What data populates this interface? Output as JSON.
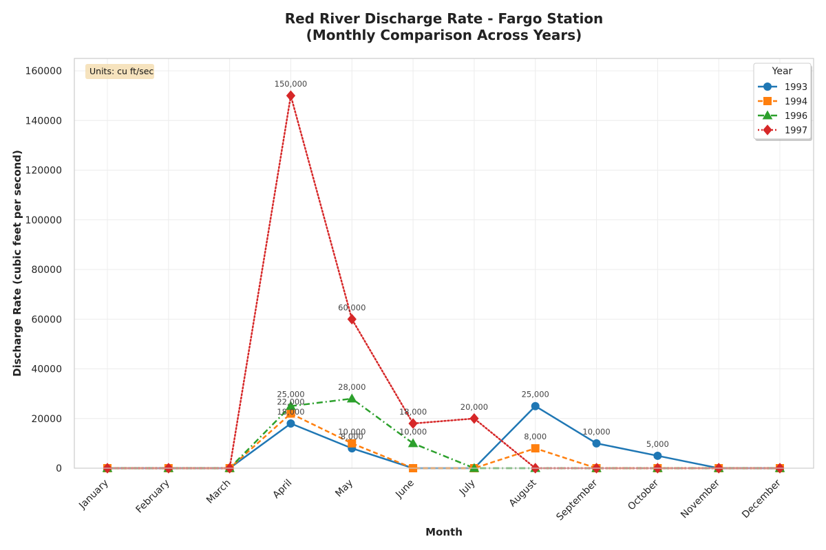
{
  "chart_data": {
    "type": "line",
    "title": "Red River Discharge Rate - Fargo Station",
    "subtitle": "(Monthly Comparison Across Years)",
    "xlabel": "Month",
    "ylabel": "Discharge Rate (cubic feet per second)",
    "categories": [
      "January",
      "February",
      "March",
      "April",
      "May",
      "June",
      "July",
      "August",
      "September",
      "October",
      "November",
      "December"
    ],
    "ylim": [
      0,
      165000
    ],
    "yticks": [
      0,
      20000,
      40000,
      60000,
      80000,
      100000,
      120000,
      140000,
      160000
    ],
    "ytick_labels": [
      "0",
      "20000",
      "40000",
      "60000",
      "80000",
      "100000",
      "120000",
      "140000",
      "160000"
    ],
    "grid": true,
    "legend": {
      "title": "Year",
      "placement": "top-right"
    },
    "annotation": "Units: cu ft/sec",
    "series": [
      {
        "name": "1993",
        "color": "#1f77b4",
        "line_style": "solid",
        "marker": "circle",
        "values": [
          0,
          0,
          0,
          18000,
          8000,
          0,
          0,
          25000,
          10000,
          5000,
          0,
          0
        ],
        "point_labels": [
          "",
          "",
          "",
          "18,000",
          "8,000",
          "",
          "",
          "25,000",
          "10,000",
          "5,000",
          "",
          ""
        ]
      },
      {
        "name": "1994",
        "color": "#ff7f0e",
        "line_style": "dashed",
        "marker": "square",
        "values": [
          0,
          0,
          0,
          22000,
          10000,
          0,
          0,
          8000,
          0,
          0,
          0,
          0
        ],
        "point_labels": [
          "",
          "",
          "",
          "22,000",
          "10,000",
          "",
          "",
          "8,000",
          "",
          "",
          "",
          ""
        ]
      },
      {
        "name": "1996",
        "color": "#2ca02c",
        "line_style": "dashdot",
        "marker": "triangle",
        "values": [
          0,
          0,
          0,
          25000,
          28000,
          10000,
          0,
          0,
          0,
          0,
          0,
          0
        ],
        "point_labels": [
          "",
          "",
          "",
          "25,000",
          "28,000",
          "10,000",
          "",
          "",
          "",
          "",
          "",
          ""
        ]
      },
      {
        "name": "1997",
        "color": "#d62728",
        "line_style": "dotted",
        "marker": "diamond",
        "values": [
          0,
          0,
          0,
          150000,
          60000,
          18000,
          20000,
          0,
          0,
          0,
          0,
          0
        ],
        "point_labels": [
          "",
          "",
          "",
          "150,000",
          "60,000",
          "18,000",
          "20,000",
          "",
          "",
          "",
          "",
          ""
        ]
      }
    ]
  }
}
